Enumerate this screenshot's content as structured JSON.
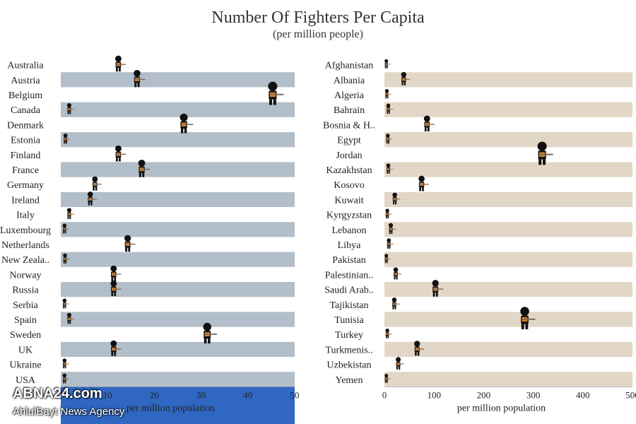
{
  "title": "Number Of Fighters Per Capita",
  "subtitle": "(per million people)",
  "colors": {
    "left_band": "#b2bec9",
    "right_band": "#e2d7c6",
    "left_axis_bg": "#2f67c2",
    "figure_body": "#111111",
    "figure_vest": "#d9822b",
    "rifle": "#7a6a5a"
  },
  "icon": "fighter-icon",
  "watermark": {
    "brand": "ABNA24.com",
    "tagline": "AhlulBayt News Agency"
  },
  "chart_data": [
    {
      "type": "scatter",
      "subtype": "dot-plot-with-icons",
      "xlabel": "per million population",
      "xlim": [
        0,
        50
      ],
      "ticks": [
        10,
        20,
        30,
        40,
        50
      ],
      "categories": [
        "Australia",
        "Austria",
        "Belgium",
        "Canada",
        "Denmark",
        "Estonia",
        "Finland",
        "France",
        "Germany",
        "Ireland",
        "Italy",
        "Luxembourg",
        "Netherlands",
        "New Zeala..",
        "Norway",
        "Russia",
        "Serbia",
        "Spain",
        "Sweden",
        "UK",
        "Ukraine",
        "USA"
      ],
      "values": [
        12,
        16,
        45,
        1.5,
        26,
        0.7,
        12,
        17,
        7,
        6,
        1.5,
        0.5,
        14,
        0.6,
        11,
        11,
        0.5,
        1.5,
        31,
        11,
        0.5,
        0.5
      ]
    },
    {
      "type": "scatter",
      "subtype": "dot-plot-with-icons",
      "xlabel": "per million population",
      "xlim": [
        0,
        500
      ],
      "ticks": [
        0,
        100,
        200,
        300,
        400,
        500
      ],
      "categories": [
        "Afghanistan",
        "Albania",
        "Algeria",
        "Bahrain",
        "Bosnia & H..",
        "Egypt",
        "Jordan",
        "Kazakhstan",
        "Kosovo",
        "Kuwait",
        "Kyrgyzstan",
        "Lebanon",
        "Libya",
        "Pakistan",
        "Palestinian..",
        "Saudi Arab..",
        "Tajikistan",
        "Tunisia",
        "Turkey",
        "Turkmenis..",
        "Uzbekistan",
        "Yemen"
      ],
      "values": [
        1,
        36,
        2,
        5,
        83,
        4,
        315,
        5,
        72,
        18,
        3,
        10,
        6,
        1,
        20,
        100,
        17,
        280,
        3,
        63,
        25,
        1
      ]
    }
  ]
}
